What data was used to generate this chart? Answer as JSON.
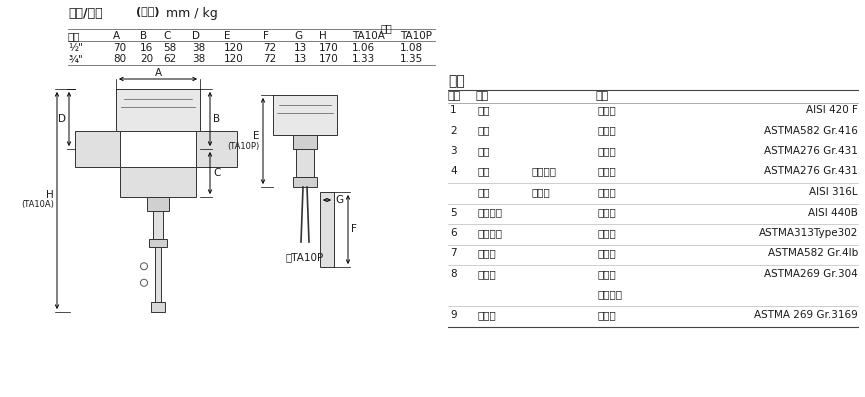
{
  "title_part1": "尺寸/重量",
  "title_part2": "(近似)",
  "title_part3": "mm / kg",
  "weight_label": "重量",
  "table_header": [
    "口径",
    "A",
    "B",
    "C",
    "D",
    "E",
    "F",
    "G",
    "H",
    "TA10A",
    "TA10P"
  ],
  "row1": [
    "½\"",
    "70",
    "16",
    "58",
    "38",
    "120",
    "72",
    "13",
    "170",
    "1.06",
    "1.08"
  ],
  "row2": [
    "¾\"",
    "80",
    "20",
    "62",
    "38",
    "120",
    "72",
    "13",
    "170",
    "1.33",
    "1.35"
  ],
  "materials_title": "材质",
  "mat_col_headers": [
    "序号",
    "部件",
    "材质"
  ],
  "mat_rows": [
    [
      "1",
      "阀体",
      "",
      "不锈钢",
      "AISI 420 F"
    ],
    [
      "2",
      "阀帽",
      "",
      "不锈钢",
      "ASTMA582 Gr.416"
    ],
    [
      "3",
      "阀杆",
      "",
      "不锈钢",
      "ASTMA276 Gr.431"
    ],
    [
      "4",
      "密封",
      "波纹管室",
      "不锈钢",
      "ASTMA276 Gr.431"
    ],
    [
      "",
      "组件",
      "波纹管",
      "不锈钢",
      "AISI 316L"
    ],
    [
      "5",
      "阀芯元件",
      "",
      "不锈钢",
      "AISI 440B"
    ],
    [
      "6",
      "回座弹簧",
      "",
      "不锈钢",
      "ASTMA313Type302"
    ],
    [
      "7",
      "调节头",
      "",
      "不锈钢",
      "ASTMA582 Gr.4lb"
    ],
    [
      "8",
      "毛细管",
      "",
      "不锈钢",
      "ASTMA269 Gr.304"
    ],
    [
      "",
      "",
      "",
      "无缝钢管",
      ""
    ],
    [
      "9",
      "感应器",
      "",
      "不锈钢",
      "ASTMA 269 Gr.3169"
    ]
  ],
  "sep_rows": [
    3,
    4,
    5,
    6,
    7,
    9
  ],
  "bg_color": "#ffffff",
  "text_color": "#1a1a1a",
  "line_color": "#666666",
  "light_line": "#aaaaaa"
}
